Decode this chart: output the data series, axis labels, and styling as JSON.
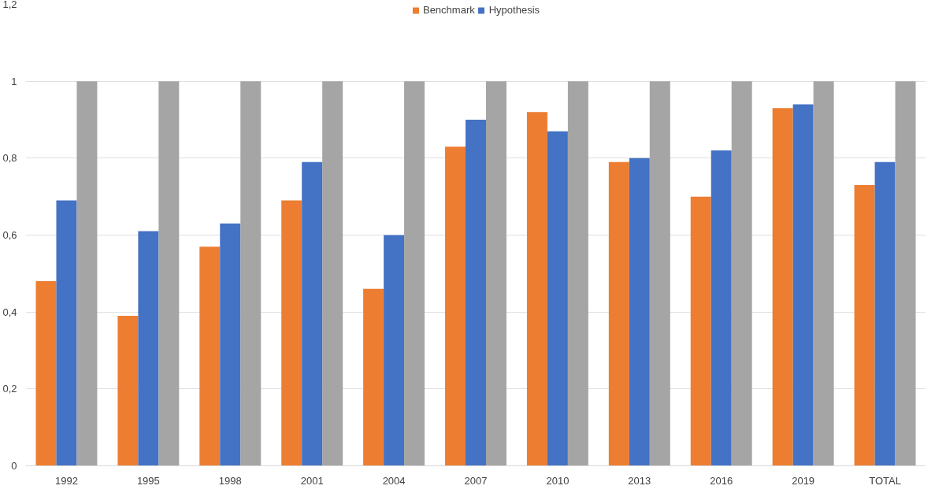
{
  "chart_data": {
    "type": "bar",
    "categories": [
      "1992",
      "1995",
      "1998",
      "2001",
      "2004",
      "2007",
      "2010",
      "2013",
      "2016",
      "2019",
      "TOTAL"
    ],
    "series": [
      {
        "name": "Benchmark",
        "color": "#ed7d31",
        "values": [
          0.48,
          0.39,
          0.57,
          0.69,
          0.46,
          0.83,
          0.92,
          0.79,
          0.7,
          0.93,
          0.73
        ]
      },
      {
        "name": "Hypothesis",
        "color": "#4472c4",
        "values": [
          0.69,
          0.61,
          0.63,
          0.79,
          0.6,
          0.9,
          0.87,
          0.8,
          0.82,
          0.94,
          0.79
        ]
      },
      {
        "color": "#a5a5a5",
        "values": [
          1,
          1,
          1,
          1,
          1,
          1,
          1,
          1,
          1,
          1,
          1
        ]
      }
    ],
    "ylim": [
      0,
      1.2
    ],
    "yticks": [
      0,
      {
        "value": 0.2,
        "label": "0,2"
      },
      {
        "value": 0.4,
        "label": "0,4"
      },
      {
        "value": 0.6,
        "label": "0,6"
      },
      {
        "value": 0.8,
        "label": "0,8"
      },
      1,
      {
        "value": 1.2,
        "label": "1,2"
      }
    ],
    "grid": "y",
    "legend": "top"
  }
}
